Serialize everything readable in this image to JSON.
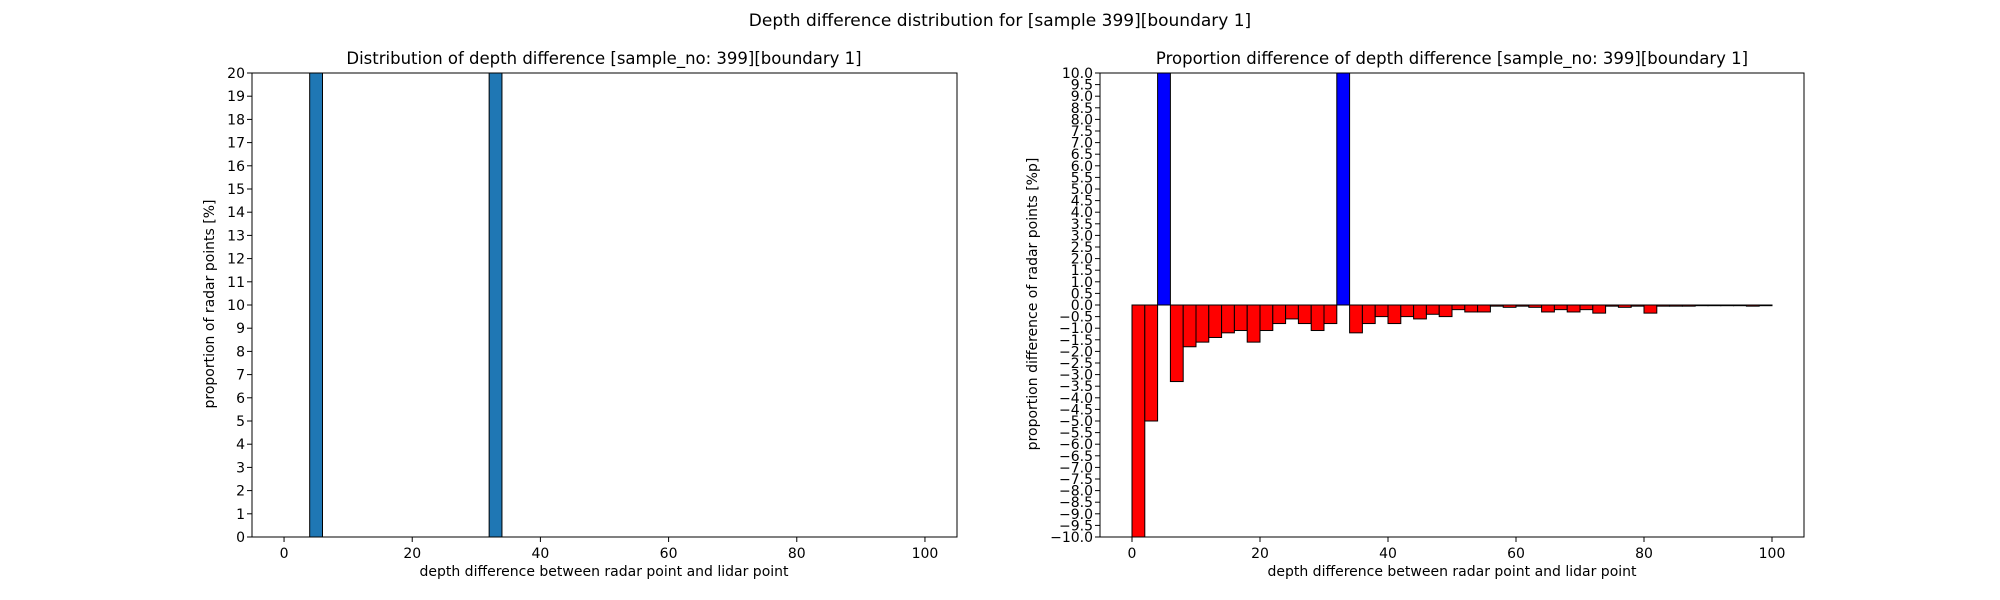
{
  "figure": {
    "suptitle": "Depth difference distribution for [sample 399][boundary 1]"
  },
  "colors": {
    "left_bar": "#1f77b4",
    "positive_bar": "#0000ff",
    "negative_bar": "#ff0000",
    "edge": "#000000"
  },
  "chart_data": [
    {
      "type": "bar",
      "title": "Distribution of depth difference [sample_no: 399][boundary 1]",
      "xlabel": "depth difference between radar point and lidar point",
      "ylabel": "proportion of radar points [%]",
      "xlim": [
        -5,
        105
      ],
      "ylim": [
        0,
        20
      ],
      "xticks": [
        0,
        20,
        40,
        60,
        80,
        100
      ],
      "yticks": [
        0,
        1,
        2,
        3,
        4,
        5,
        6,
        7,
        8,
        9,
        10,
        11,
        12,
        13,
        14,
        15,
        16,
        17,
        18,
        19,
        20
      ],
      "bar_width": 2,
      "bars": [
        {
          "x": 4,
          "value": 20
        },
        {
          "x": 32,
          "value": 20
        }
      ],
      "grid": false
    },
    {
      "type": "bar",
      "title": "Proportion difference of depth difference [sample_no: 399][boundary 1]",
      "xlabel": "depth difference between radar point and lidar point",
      "ylabel": "proportion difference of radar points [%p]",
      "xlim": [
        -5,
        105
      ],
      "ylim": [
        -10,
        10
      ],
      "xticks": [
        0,
        20,
        40,
        60,
        80,
        100
      ],
      "yticks": [
        -10.0,
        -9.5,
        -9.0,
        -8.5,
        -8.0,
        -7.5,
        -7.0,
        -6.5,
        -6.0,
        -5.5,
        -5.0,
        -4.5,
        -4.0,
        -3.5,
        -3.0,
        -2.5,
        -2.0,
        -1.5,
        -1.0,
        -0.5,
        0.0,
        0.5,
        1.0,
        1.5,
        2.0,
        2.5,
        3.0,
        3.5,
        4.0,
        4.5,
        5.0,
        5.5,
        6.0,
        6.5,
        7.0,
        7.5,
        8.0,
        8.5,
        9.0,
        9.5,
        10.0
      ],
      "bar_width": 2,
      "x": [
        0,
        2,
        4,
        6,
        8,
        10,
        12,
        14,
        16,
        18,
        20,
        22,
        24,
        26,
        28,
        30,
        32,
        34,
        36,
        38,
        40,
        42,
        44,
        46,
        48,
        50,
        52,
        54,
        56,
        58,
        60,
        62,
        64,
        66,
        68,
        70,
        72,
        74,
        76,
        78,
        80,
        82,
        84,
        86,
        88,
        90,
        92,
        94,
        96,
        98
      ],
      "values": [
        -10,
        -5.0,
        10,
        -3.3,
        -1.8,
        -1.6,
        -1.4,
        -1.2,
        -1.1,
        -1.6,
        -1.1,
        -0.8,
        -0.6,
        -0.8,
        -1.1,
        -0.8,
        10,
        -1.2,
        -0.8,
        -0.5,
        -0.8,
        -0.5,
        -0.6,
        -0.4,
        -0.5,
        -0.2,
        -0.3,
        -0.3,
        -0.05,
        -0.1,
        -0.05,
        -0.1,
        -0.3,
        -0.2,
        -0.3,
        -0.2,
        -0.35,
        -0.05,
        -0.1,
        -0.05,
        -0.35,
        -0.05,
        -0.05,
        -0.05,
        -0.03,
        -0.03,
        -0.03,
        -0.03,
        -0.05,
        -0.03
      ],
      "grid": false
    }
  ]
}
